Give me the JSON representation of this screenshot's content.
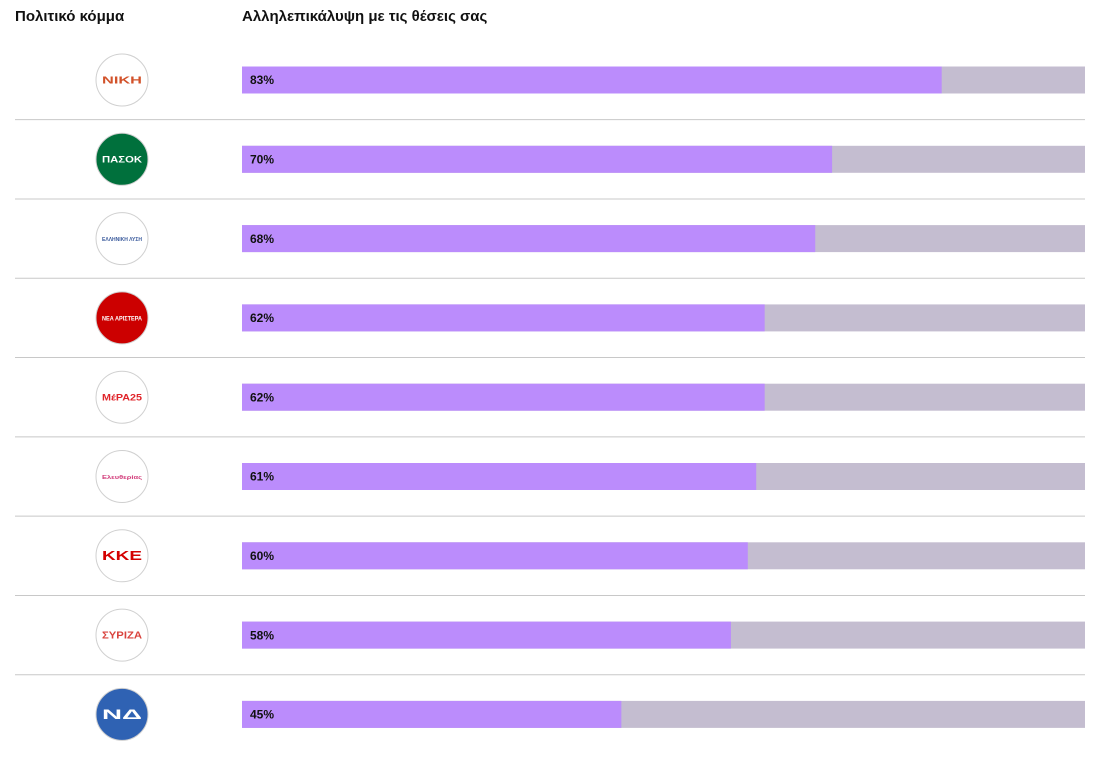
{
  "chart_data": {
    "type": "hbar",
    "columns": [
      "Πολιτικό κόμμα",
      "Αλληλεπικάλυψη με τις θέσεις σας"
    ],
    "categories": [
      "ΝΙΚΗ",
      "ΠΑΣΟΚ",
      "ΕΛΛΗΝΙΚΗ ΛΥΣΗ",
      "ΝΕΑ ΑΡΙΣΤΕΡΑ",
      "ΜέΡΑ25",
      "Ελευθερίας",
      "ΚΚΕ",
      "ΣΥΡΙΖΑ",
      "ΝΔ"
    ],
    "values": [
      83,
      70,
      68,
      62,
      62,
      61,
      60,
      58,
      45
    ],
    "value_labels": [
      "83%",
      "70%",
      "68%",
      "62%",
      "62%",
      "61%",
      "60%",
      "58%",
      "45%"
    ],
    "xlim": [
      0,
      100
    ],
    "color": "#bb8cfc",
    "track_color": "#c4bdd0"
  }
}
